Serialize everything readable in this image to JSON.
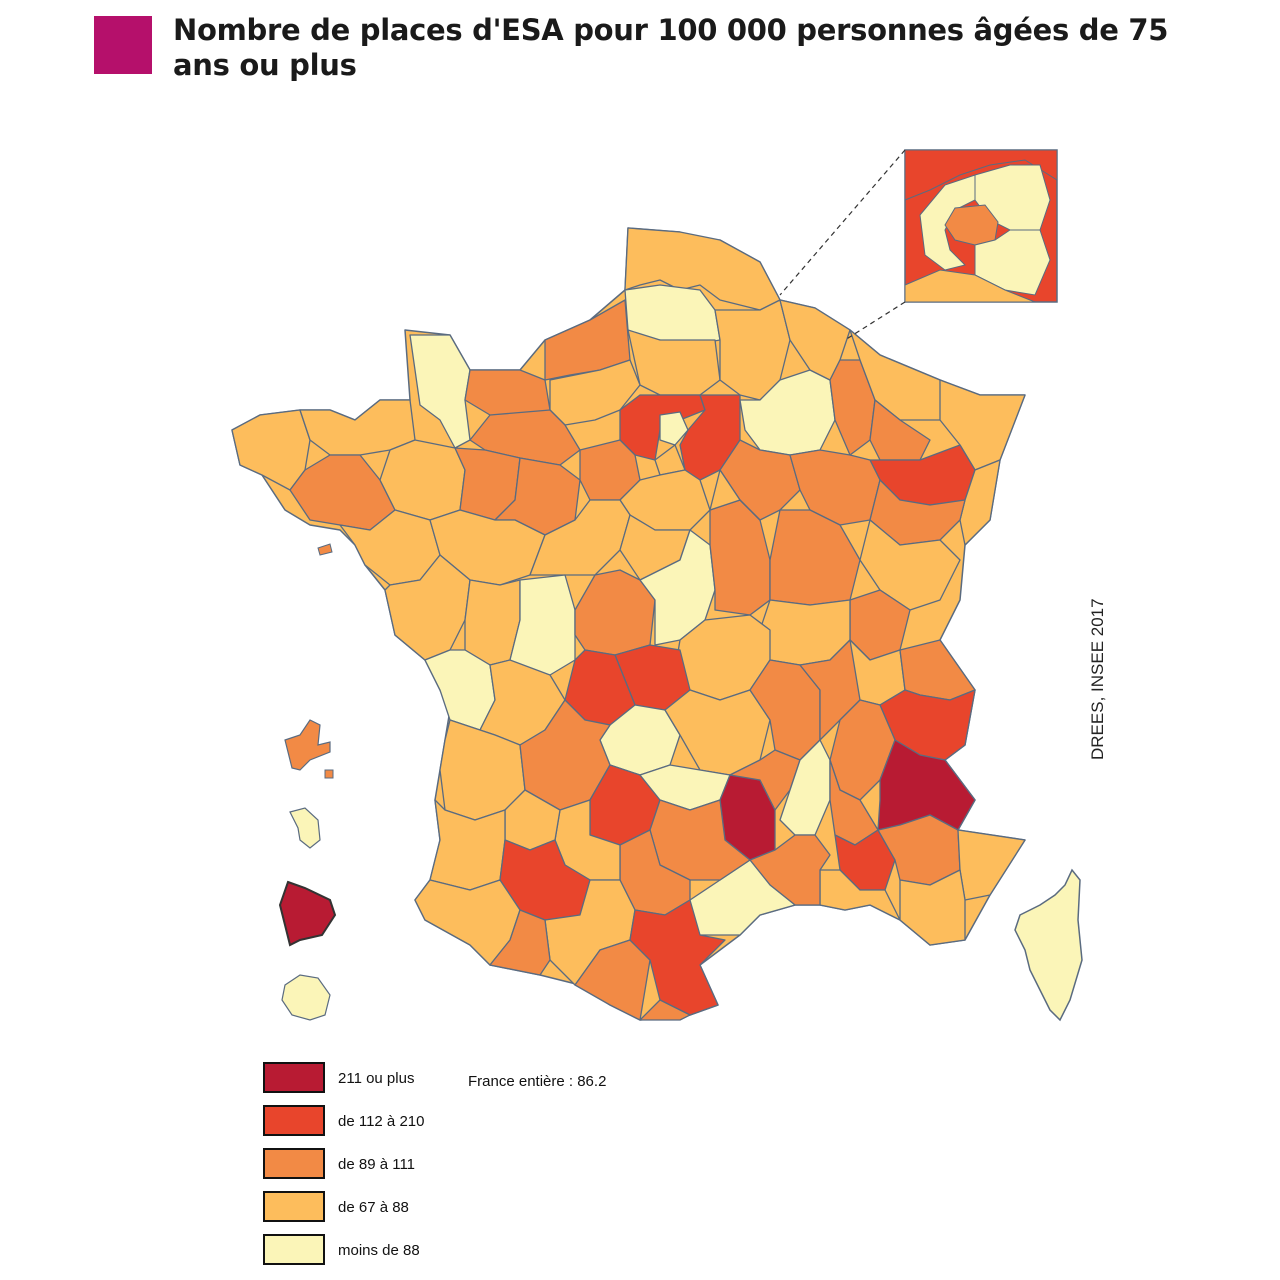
{
  "title": "Nombre de places d'ESA pour 100 000 personnes âgées de 75 ans ou plus",
  "source": "DREES, INSEE 2017",
  "france_total": "France entière : 86.2",
  "colors": {
    "title_square": "#b5106b",
    "class_211_plus": "#b81b33",
    "class_112_210": "#e8452c",
    "class_89_111": "#f28a45",
    "class_67_88": "#fdbd5c",
    "class_lt_88": "#fbf5b8"
  },
  "legend": [
    {
      "label": "211 ou plus",
      "color": "#b81b33"
    },
    {
      "label": "de 112 à 210",
      "color": "#e8452c"
    },
    {
      "label": "de 89 à 111",
      "color": "#f28a45"
    },
    {
      "label": "de 67 à 88",
      "color": "#fdbd5c"
    },
    {
      "label": "moins de 88",
      "color": "#fbf5b8"
    }
  ]
}
